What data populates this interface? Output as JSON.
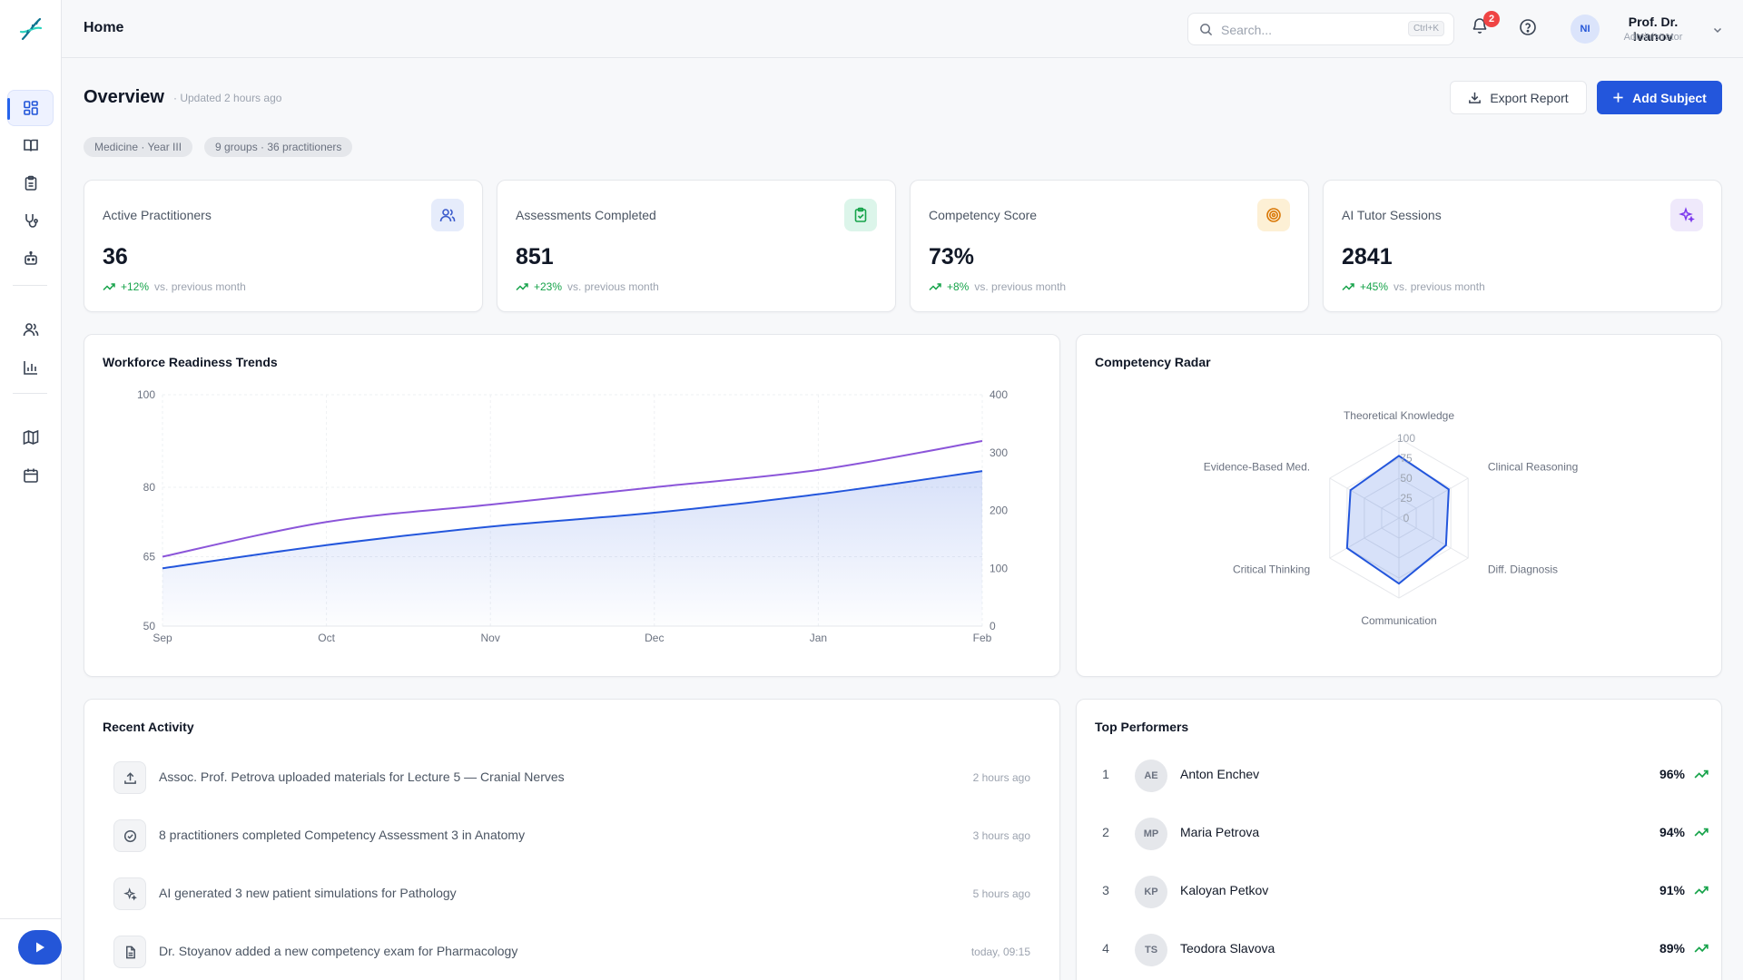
{
  "topbar": {
    "title": "Home",
    "search_placeholder": "Search...",
    "search_shortcut": "Ctrl+K",
    "notification_count": "2",
    "user": {
      "initials": "NI",
      "name": "Prof. Dr. Ivanov",
      "role": "Administrator"
    }
  },
  "sidebar": {
    "items": [
      {
        "icon": "dashboard-icon",
        "active": true
      },
      {
        "icon": "book-open-icon"
      },
      {
        "icon": "clipboard-icon"
      },
      {
        "icon": "stethoscope-icon"
      },
      {
        "icon": "robot-icon"
      },
      {
        "icon": "users-icon"
      },
      {
        "icon": "bar-chart-icon"
      },
      {
        "icon": "map-icon"
      },
      {
        "icon": "calendar-icon"
      }
    ]
  },
  "header": {
    "title": "Overview",
    "updated": "· Updated 2 hours ago",
    "export_label": "Export Report",
    "add_label": "Add Subject",
    "chips": [
      "Medicine · Year III",
      "9 groups · 36 practitioners"
    ]
  },
  "stats": [
    {
      "label": "Active Practitioners",
      "value": "36",
      "delta": "+12%",
      "note": "vs. previous month",
      "icon": "users-icon",
      "icon_bg": "#e6ecfb",
      "icon_color": "#3b5bcc"
    },
    {
      "label": "Assessments Completed",
      "value": "851",
      "delta": "+23%",
      "note": "vs. previous month",
      "icon": "clipboard-check-icon",
      "icon_bg": "#dcf5ea",
      "icon_color": "#16a34a"
    },
    {
      "label": "Competency Score",
      "value": "73%",
      "delta": "+8%",
      "note": "vs. previous month",
      "icon": "target-icon",
      "icon_bg": "#fdf0d5",
      "icon_color": "#d97706"
    },
    {
      "label": "AI Tutor Sessions",
      "value": "2841",
      "delta": "+45%",
      "note": "vs. previous month",
      "icon": "sparkles-icon",
      "icon_bg": "#efe9fb",
      "icon_color": "#7c3aed"
    }
  ],
  "trends": {
    "title": "Workforce Readiness Trends"
  },
  "radar": {
    "title": "Competency Radar"
  },
  "chart_data": [
    {
      "type": "area",
      "title": "Workforce Readiness Trends",
      "categories": [
        "Sep",
        "Oct",
        "Nov",
        "Dec",
        "Jan",
        "Feb"
      ],
      "y_left": {
        "ticks": [
          50,
          65,
          80,
          100
        ],
        "range": [
          50,
          100
        ]
      },
      "y_right": {
        "ticks": [
          0,
          100,
          200,
          300,
          400
        ],
        "range": [
          0,
          400
        ]
      },
      "series": [
        {
          "axis": "left",
          "color": "#2356dc",
          "fill": true,
          "values": [
            62.5,
            67.5,
            71.5,
            74.5,
            78.5,
            83.5
          ]
        },
        {
          "axis": "right",
          "color": "#8b55d9",
          "fill": false,
          "values": [
            120,
            180,
            210,
            240,
            270,
            320
          ]
        }
      ],
      "grid": true
    },
    {
      "type": "radar",
      "title": "Competency Radar",
      "axes": [
        "Theoretical Knowledge",
        "Clinical Reasoning",
        "Diff. Diagnosis",
        "Communication",
        "Critical Thinking",
        "Evidence-Based Med."
      ],
      "ticks": [
        0,
        25,
        50,
        75,
        100
      ],
      "range": [
        0,
        100
      ],
      "values": [
        78,
        72,
        68,
        82,
        75,
        70
      ],
      "color": "#2356dc"
    }
  ],
  "activity": {
    "title": "Recent Activity",
    "items": [
      {
        "icon": "upload-icon",
        "text": "Assoc. Prof. Petrova uploaded materials for Lecture 5 — Cranial Nerves",
        "time": "2 hours ago"
      },
      {
        "icon": "check-circle-icon",
        "text": "8 practitioners completed Competency Assessment 3 in Anatomy",
        "time": "3 hours ago"
      },
      {
        "icon": "sparkles-icon",
        "text": "AI generated 3 new patient simulations for Pathology",
        "time": "5 hours ago"
      },
      {
        "icon": "file-icon",
        "text": "Dr. Stoyanov added a new competency exam for Pharmacology",
        "time": "today, 09:15"
      }
    ]
  },
  "performers": {
    "title": "Top Performers",
    "items": [
      {
        "rank": "1",
        "initials": "AE",
        "name": "Anton Enchev",
        "score": "96%"
      },
      {
        "rank": "2",
        "initials": "MP",
        "name": "Maria Petrova",
        "score": "94%"
      },
      {
        "rank": "3",
        "initials": "KP",
        "name": "Kaloyan Petkov",
        "score": "91%"
      },
      {
        "rank": "4",
        "initials": "TS",
        "name": "Teodora Slavova",
        "score": "89%"
      }
    ]
  }
}
